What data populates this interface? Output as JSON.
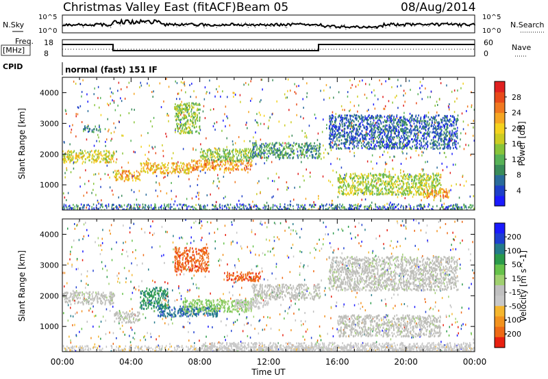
{
  "header": {
    "title": "Christmas Valley East (fitACF)",
    "beam": "Beam 05",
    "date": "08/Aug/2014"
  },
  "panels": {
    "nsky_label": "N.Sky",
    "nsearch_label": "N.Search",
    "nsky_ticks": [
      "10^5",
      "10^0"
    ],
    "freq_label_1": "Freq.",
    "freq_label_2": "[MHz]",
    "freq_ticks": [
      "18",
      "8"
    ],
    "nave_label": "Nave",
    "nave_ticks": [
      "60",
      "0"
    ],
    "cpid_label": "CPID",
    "cpid_value": "normal (fast) 151 IF"
  },
  "colors": {
    "power_scale": [
      "#1a1aff",
      "#1e40c8",
      "#2a6b9a",
      "#3a8c5a",
      "#57b257",
      "#88c43a",
      "#cccc22",
      "#f4d21e",
      "#f5a623",
      "#f07820",
      "#e84a1a",
      "#e02020"
    ],
    "velocity_scale": [
      "#1a1aff",
      "#1e3fd0",
      "#247a8a",
      "#2a9a4a",
      "#66c24a",
      "#a0d070",
      "#c0c0c0",
      "#c8c8c8",
      "#f5b62e",
      "#f2921e",
      "#ee6a16",
      "#e82010"
    ],
    "ground_scatter": "#bdbdb8"
  },
  "chart_data": [
    {
      "type": "heatmap",
      "title": "Power",
      "xlabel": "",
      "ylabel": "Slant Range [km]",
      "x_ticks": [
        "00:00",
        "04:00",
        "08:00",
        "12:00",
        "16:00",
        "20:00",
        "00:00"
      ],
      "x_hours": [
        0,
        4,
        8,
        12,
        16,
        20,
        24
      ],
      "y_ticks": [
        1000,
        2000,
        3000,
        4000
      ],
      "ylim": [
        180,
        4500
      ],
      "colorbar": {
        "label": "Power [dB]",
        "ticks": [
          4,
          8,
          12,
          16,
          20,
          24,
          28
        ],
        "range": [
          0,
          32
        ]
      },
      "regions": [
        {
          "x": [
            0,
            3.0
          ],
          "y": [
            1750,
            2150
          ],
          "value": 18
        },
        {
          "x": [
            1.2,
            2.2
          ],
          "y": [
            2750,
            2950
          ],
          "value": 8
        },
        {
          "x": [
            3.0,
            4.5
          ],
          "y": [
            1150,
            1500
          ],
          "value": 22
        },
        {
          "x": [
            4.5,
            7.5
          ],
          "y": [
            1400,
            1750
          ],
          "value": 21
        },
        {
          "x": [
            7.5,
            11.0
          ],
          "y": [
            1500,
            1850
          ],
          "value": 24
        },
        {
          "x": [
            6.5,
            8.0
          ],
          "y": [
            2700,
            3700
          ],
          "value": 14
        },
        {
          "x": [
            8.0,
            11.0
          ],
          "y": [
            1800,
            2200
          ],
          "value": 14
        },
        {
          "x": [
            11.0,
            15.0
          ],
          "y": [
            1900,
            2400
          ],
          "value": 10
        },
        {
          "x": [
            15.5,
            23.0
          ],
          "y": [
            2200,
            3300
          ],
          "value": 6
        },
        {
          "x": [
            16.0,
            22.0
          ],
          "y": [
            700,
            1400
          ],
          "value": 16
        },
        {
          "x": [
            21.0,
            22.5
          ],
          "y": [
            600,
            900
          ],
          "value": 24
        }
      ]
    },
    {
      "type": "heatmap",
      "title": "Velocity",
      "xlabel": "Time UT",
      "ylabel": "Slant Range [km]",
      "x_ticks": [
        "00:00",
        "04:00",
        "08:00",
        "12:00",
        "16:00",
        "20:00",
        "00:00"
      ],
      "x_hours": [
        0,
        4,
        8,
        12,
        16,
        20,
        24
      ],
      "y_ticks": [
        1000,
        2000,
        3000,
        4000
      ],
      "ylim": [
        180,
        4500
      ],
      "colorbar": {
        "label": "Velocity [m s^-1]",
        "ticks": [
          "200",
          "100",
          "50",
          "15",
          "-15",
          "-50",
          "-100",
          "-200"
        ],
        "range": [
          -250,
          250
        ]
      },
      "regions": [
        {
          "x": [
            0,
            3.0
          ],
          "y": [
            1750,
            2150
          ],
          "value": 0
        },
        {
          "x": [
            3.0,
            4.5
          ],
          "y": [
            1150,
            1500
          ],
          "value": 0
        },
        {
          "x": [
            4.5,
            6.2
          ],
          "y": [
            1600,
            2300
          ],
          "value": 120
        },
        {
          "x": [
            5.5,
            9.0
          ],
          "y": [
            1350,
            1700
          ],
          "value": 160
        },
        {
          "x": [
            7.0,
            11.0
          ],
          "y": [
            1500,
            1900
          ],
          "value": 40
        },
        {
          "x": [
            6.5,
            8.5
          ],
          "y": [
            2800,
            3600
          ],
          "value": -200
        },
        {
          "x": [
            9.5,
            11.5
          ],
          "y": [
            2500,
            2800
          ],
          "value": -200
        },
        {
          "x": [
            10.0,
            12.0
          ],
          "y": [
            1600,
            1900
          ],
          "value": -60
        },
        {
          "x": [
            11.0,
            15.0
          ],
          "y": [
            1900,
            2400
          ],
          "value": 0
        },
        {
          "x": [
            15.5,
            23.0
          ],
          "y": [
            2200,
            3300
          ],
          "value": 0
        },
        {
          "x": [
            16.0,
            22.0
          ],
          "y": [
            700,
            1400
          ],
          "value": 0
        },
        {
          "x": [
            8.0,
            24.0
          ],
          "y": [
            180,
            500
          ],
          "value": -60
        }
      ]
    }
  ]
}
